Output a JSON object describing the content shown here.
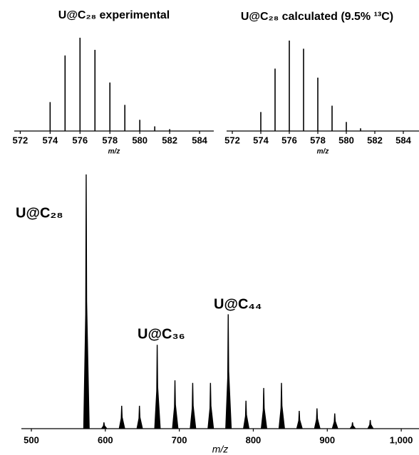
{
  "chart_data": [
    {
      "type": "stem",
      "title": "U@C₂₈ experimental",
      "x_label": "m/z",
      "x": [
        574,
        575,
        576,
        577,
        578,
        579,
        580,
        581,
        582
      ],
      "series": [
        {
          "color": "#000000",
          "values": [
            31,
            81,
            100,
            87,
            52,
            28,
            12,
            5,
            2
          ]
        }
      ],
      "xlim": [
        571.6,
        584.95
      ],
      "ylim": [
        0,
        100
      ],
      "xticks": [
        572,
        574,
        576,
        578,
        580,
        582,
        584
      ]
    },
    {
      "type": "stem",
      "title": "U@C₂₈ calculated (9.5% ¹³C)",
      "x_label": "m/z",
      "x": [
        574,
        575,
        576,
        577,
        578,
        579,
        580,
        581
      ],
      "series": [
        {
          "color": "#000000",
          "values": [
            21,
            69,
            100,
            91,
            59,
            28,
            10,
            3
          ]
        }
      ],
      "xlim": [
        571.6,
        585.1
      ],
      "ylim": [
        0,
        100
      ],
      "xticks": [
        572,
        574,
        576,
        578,
        580,
        582,
        584
      ]
    },
    {
      "type": "peak",
      "x_label": "m/z",
      "annotations": [
        "U@C₂₈",
        "U@C₃₆",
        "U@C₄₄"
      ],
      "x": [
        574,
        598,
        622,
        646,
        670,
        694,
        718,
        742,
        766,
        790,
        814,
        838,
        862,
        886,
        910,
        934,
        958
      ],
      "series": [
        {
          "color": "#000000",
          "values": [
            100,
            2.5,
            9,
            9,
            33,
            19,
            18,
            18,
            45,
            11,
            16,
            18,
            7,
            8,
            6,
            2.5,
            3.4
          ]
        }
      ],
      "xlim": [
        486.5,
        1024
      ],
      "ylim": [
        0,
        100
      ],
      "xticks": [
        500,
        600,
        700,
        800,
        900,
        {
          "value": 1000,
          "label": "1,000"
        }
      ]
    }
  ]
}
